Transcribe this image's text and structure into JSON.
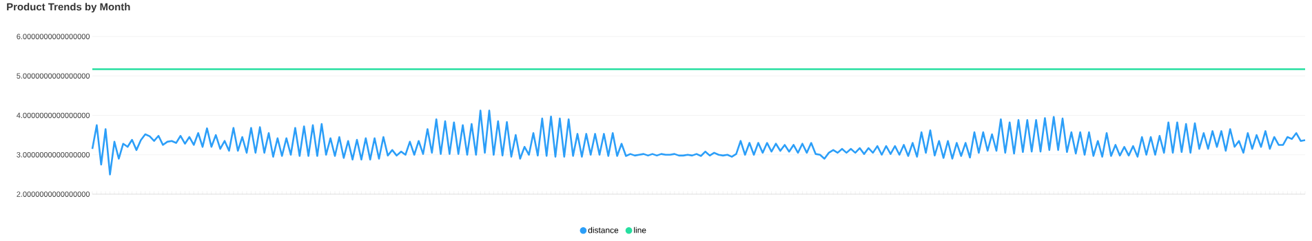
{
  "chart_data": {
    "type": "line",
    "title": "Product Trends by Month",
    "categories": [
      null,
      null,
      null,
      null,
      null,
      null,
      null,
      null,
      null,
      null,
      null,
      null,
      null,
      null,
      null,
      null,
      null,
      null,
      null,
      null,
      null,
      null,
      null,
      null,
      null,
      null,
      null,
      null,
      null,
      null,
      null,
      null,
      null,
      null,
      null,
      null,
      null,
      null,
      null,
      null,
      null,
      null,
      null,
      null,
      null,
      null,
      null,
      null,
      null,
      null,
      null,
      null,
      null,
      null,
      null,
      null,
      null,
      null,
      null,
      null,
      null,
      null,
      null,
      null,
      null,
      null,
      null,
      null,
      null,
      null,
      null,
      null,
      null,
      null,
      null,
      null,
      null,
      null,
      null,
      null,
      null,
      null,
      null,
      null,
      null,
      null,
      null,
      null,
      null,
      null,
      null,
      null,
      null,
      null,
      null,
      null,
      null,
      null,
      null,
      null,
      null,
      null,
      null,
      null,
      null,
      null,
      null,
      null,
      null,
      null,
      null,
      null,
      null,
      null,
      null,
      null,
      null,
      null,
      null,
      null,
      null,
      null,
      null,
      null,
      null,
      null,
      null,
      null,
      null,
      null,
      null,
      null,
      null,
      null,
      null,
      null,
      null,
      null,
      null,
      null,
      null,
      null,
      null,
      null,
      null,
      null,
      null,
      null,
      null,
      null,
      null,
      null,
      null,
      null,
      null,
      null,
      null,
      null,
      null,
      null,
      null,
      null,
      null,
      null,
      null,
      null,
      null,
      null,
      null,
      null,
      null,
      null,
      null,
      null,
      null,
      null,
      null,
      null,
      null,
      null,
      null,
      null,
      null,
      null,
      null,
      null,
      null,
      null,
      null,
      null,
      null,
      null,
      null,
      null,
      null,
      null,
      null,
      null,
      null,
      null,
      null,
      null,
      null,
      null,
      null,
      null,
      null,
      null,
      null,
      null,
      null,
      null,
      null,
      null,
      null,
      null,
      null,
      null,
      null,
      null,
      null,
      null,
      null,
      null,
      null,
      null,
      null,
      null,
      null,
      null,
      null,
      null,
      null,
      null,
      null,
      null,
      null,
      null,
      null,
      null,
      null,
      null,
      null,
      null,
      null,
      null,
      null,
      null,
      null,
      null,
      null,
      null,
      null,
      null,
      null,
      null,
      null,
      null,
      null,
      null,
      null,
      null,
      null,
      null,
      null,
      null,
      null,
      null,
      null,
      null,
      null,
      null,
      null,
      null,
      null,
      null
    ],
    "series": [
      {
        "name": "distance",
        "color": "#2b9ef8",
        "values": [
          3.15,
          3.75,
          2.75,
          3.65,
          2.5,
          3.33,
          2.9,
          3.28,
          3.2,
          3.38,
          3.12,
          3.37,
          3.52,
          3.47,
          3.35,
          3.48,
          3.25,
          3.33,
          3.35,
          3.3,
          3.48,
          3.28,
          3.45,
          3.25,
          3.55,
          3.2,
          3.67,
          3.2,
          3.5,
          3.15,
          3.35,
          3.1,
          3.68,
          3.1,
          3.45,
          3.05,
          3.68,
          3.05,
          3.7,
          3.05,
          3.55,
          2.95,
          3.42,
          2.97,
          3.42,
          3.0,
          3.68,
          2.97,
          3.72,
          2.97,
          3.75,
          2.97,
          3.78,
          3.0,
          3.42,
          2.97,
          3.45,
          2.92,
          3.35,
          2.88,
          3.38,
          2.88,
          3.42,
          2.88,
          3.42,
          2.9,
          3.45,
          2.98,
          3.12,
          2.98,
          3.08,
          3.0,
          3.33,
          3.0,
          3.35,
          3.02,
          3.65,
          3.05,
          3.9,
          3.02,
          3.85,
          3.02,
          3.82,
          3.02,
          3.75,
          3.0,
          3.78,
          3.0,
          4.12,
          3.05,
          4.12,
          3.0,
          3.85,
          2.98,
          3.83,
          2.95,
          3.5,
          2.9,
          3.2,
          3.0,
          3.55,
          2.98,
          3.92,
          2.97,
          3.97,
          2.95,
          3.92,
          2.95,
          3.9,
          2.97,
          3.53,
          2.95,
          3.53,
          3.0,
          3.53,
          3.0,
          3.53,
          2.97,
          3.55,
          2.97,
          3.28,
          2.97,
          3.02,
          2.98,
          3.0,
          3.02,
          2.98,
          3.02,
          2.98,
          3.02,
          3.0,
          3.0,
          3.02,
          2.98,
          2.98,
          3.0,
          2.98,
          3.02,
          2.97,
          3.08,
          2.98,
          3.05,
          3.0,
          2.98,
          3.0,
          2.95,
          3.02,
          3.35,
          3.0,
          3.3,
          3.0,
          3.3,
          3.05,
          3.3,
          3.08,
          3.28,
          3.1,
          3.25,
          3.08,
          3.25,
          3.05,
          3.28,
          3.05,
          3.3,
          3.02,
          3.0,
          2.9,
          3.05,
          3.12,
          3.05,
          3.15,
          3.05,
          3.15,
          3.05,
          3.17,
          3.02,
          3.17,
          3.05,
          3.22,
          3.0,
          3.22,
          3.02,
          3.22,
          3.0,
          3.25,
          2.97,
          3.3,
          2.95,
          3.57,
          3.05,
          3.62,
          2.98,
          3.35,
          2.92,
          3.35,
          2.9,
          3.3,
          2.97,
          3.3,
          2.93,
          3.57,
          3.05,
          3.57,
          3.1,
          3.52,
          3.1,
          3.9,
          3.05,
          3.82,
          3.03,
          3.88,
          3.07,
          3.88,
          3.08,
          3.88,
          3.08,
          3.93,
          3.12,
          3.96,
          3.12,
          3.92,
          3.07,
          3.57,
          3.03,
          3.57,
          3.0,
          3.57,
          2.97,
          3.35,
          2.95,
          3.55,
          2.97,
          3.25,
          2.98,
          3.2,
          2.98,
          3.22,
          2.95,
          3.45,
          3.0,
          3.45,
          3.0,
          3.48,
          3.05,
          3.82,
          3.05,
          3.82,
          3.07,
          3.78,
          3.05,
          3.8,
          3.15,
          3.55,
          3.15,
          3.6,
          3.2,
          3.6,
          3.1,
          3.65,
          3.2,
          3.35,
          3.05,
          3.55,
          3.15,
          3.5,
          3.2,
          3.6,
          3.15,
          3.45,
          3.25,
          3.25,
          3.45,
          3.4,
          3.55,
          3.35,
          3.37
        ]
      },
      {
        "name": "line",
        "color": "#26dfa0",
        "values": [
          5.17,
          5.17,
          5.17,
          5.17,
          5.17,
          5.17,
          5.17,
          5.17,
          5.17,
          5.17,
          5.17,
          5.17,
          5.17,
          5.17,
          5.17,
          5.17,
          5.17,
          5.17,
          5.17,
          5.17,
          5.17,
          5.17,
          5.17,
          5.17,
          5.17,
          5.17,
          5.17,
          5.17,
          5.17,
          5.17,
          5.17,
          5.17,
          5.17,
          5.17,
          5.17,
          5.17,
          5.17,
          5.17,
          5.17,
          5.17,
          5.17,
          5.17,
          5.17,
          5.17,
          5.17,
          5.17,
          5.17,
          5.17,
          5.17,
          5.17,
          5.17,
          5.17,
          5.17,
          5.17,
          5.17,
          5.17,
          5.17,
          5.17,
          5.17,
          5.17,
          5.17,
          5.17,
          5.17,
          5.17,
          5.17,
          5.17,
          5.17,
          5.17,
          5.17,
          5.17,
          5.17,
          5.17,
          5.17,
          5.17,
          5.17,
          5.17,
          5.17,
          5.17,
          5.17,
          5.17,
          5.17,
          5.17,
          5.17,
          5.17,
          5.17,
          5.17,
          5.17,
          5.17,
          5.17,
          5.17,
          5.17,
          5.17,
          5.17,
          5.17,
          5.17,
          5.17,
          5.17,
          5.17,
          5.17,
          5.17,
          5.17,
          5.17,
          5.17,
          5.17,
          5.17,
          5.17,
          5.17,
          5.17,
          5.17,
          5.17,
          5.17,
          5.17,
          5.17,
          5.17,
          5.17,
          5.17,
          5.17,
          5.17,
          5.17,
          5.17,
          5.17,
          5.17,
          5.17,
          5.17,
          5.17,
          5.17,
          5.17,
          5.17,
          5.17,
          5.17,
          5.17,
          5.17,
          5.17,
          5.17,
          5.17,
          5.17,
          5.17,
          5.17,
          5.17,
          5.17,
          5.17,
          5.17,
          5.17,
          5.17,
          5.17,
          5.17,
          5.17,
          5.17,
          5.17,
          5.17,
          5.17,
          5.17,
          5.17,
          5.17,
          5.17,
          5.17,
          5.17,
          5.17,
          5.17,
          5.17,
          5.17,
          5.17,
          5.17,
          5.17,
          5.17,
          5.17,
          5.17,
          5.17,
          5.17,
          5.17,
          5.17,
          5.17,
          5.17,
          5.17,
          5.17,
          5.17,
          5.17,
          5.17,
          5.17,
          5.17,
          5.17,
          5.17,
          5.17,
          5.17,
          5.17,
          5.17,
          5.17,
          5.17,
          5.17,
          5.17,
          5.17,
          5.17,
          5.17,
          5.17,
          5.17,
          5.17,
          5.17,
          5.17,
          5.17,
          5.17,
          5.17,
          5.17,
          5.17,
          5.17,
          5.17,
          5.17,
          5.17,
          5.17,
          5.17,
          5.17,
          5.17,
          5.17,
          5.17,
          5.17,
          5.17,
          5.17,
          5.17,
          5.17,
          5.17,
          5.17,
          5.17,
          5.17,
          5.17,
          5.17,
          5.17,
          5.17,
          5.17,
          5.17,
          5.17,
          5.17,
          5.17,
          5.17,
          5.17,
          5.17,
          5.17,
          5.17,
          5.17,
          5.17,
          5.17,
          5.17,
          5.17,
          5.17,
          5.17,
          5.17,
          5.17,
          5.17,
          5.17,
          5.17,
          5.17,
          5.17,
          5.17,
          5.17,
          5.17,
          5.17,
          5.17,
          5.17,
          5.17,
          5.17,
          5.17,
          5.17,
          5.17,
          5.17,
          5.17,
          5.17,
          5.17,
          5.17,
          5.17,
          5.17,
          5.17,
          5.17,
          5.17,
          5.17,
          5.17,
          5.17,
          5.17,
          5.17
        ]
      }
    ],
    "ylim": [
      2,
      6
    ],
    "yticks": [
      {
        "value": 2,
        "label": "2.0000000000000000"
      },
      {
        "value": 3,
        "label": "3.0000000000000000"
      },
      {
        "value": 4,
        "label": "4.0000000000000000"
      },
      {
        "value": 5,
        "label": "5.0000000000000000"
      },
      {
        "value": 6,
        "label": "6.0000000000000000"
      }
    ],
    "grid": "y",
    "legend": "bottom",
    "tick_labels": "y",
    "marker": "none",
    "line_style": "solid"
  }
}
